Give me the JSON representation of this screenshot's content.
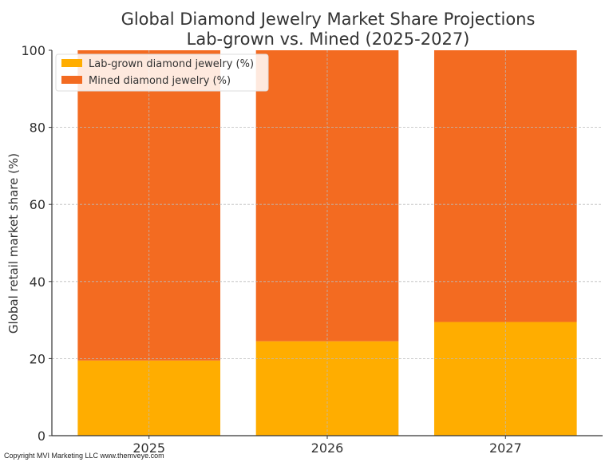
{
  "chart_data": {
    "type": "bar",
    "stacked": true,
    "title": "Global Diamond Jewelry Market Share Projections",
    "subtitle": "Lab-grown vs. Mined (2025-2027)",
    "xlabel": "",
    "ylabel": "Global retail market share (%)",
    "ylim": [
      0,
      100
    ],
    "yticks": [
      0,
      20,
      40,
      60,
      80,
      100
    ],
    "categories": [
      "2025",
      "2026",
      "2027"
    ],
    "series": [
      {
        "name": "Lab-grown diamond jewelry (%)",
        "color": "#FFAD00",
        "values": [
          19.5,
          24.5,
          29.5
        ]
      },
      {
        "name": "Mined diamond jewelry (%)",
        "color": "#F36B21",
        "values": [
          80.5,
          75.5,
          70.5
        ]
      }
    ],
    "grid": true,
    "legend": "top-left"
  },
  "footer": {
    "copyright": "Copyright MVI Marketing LLC www.themveye.com"
  }
}
